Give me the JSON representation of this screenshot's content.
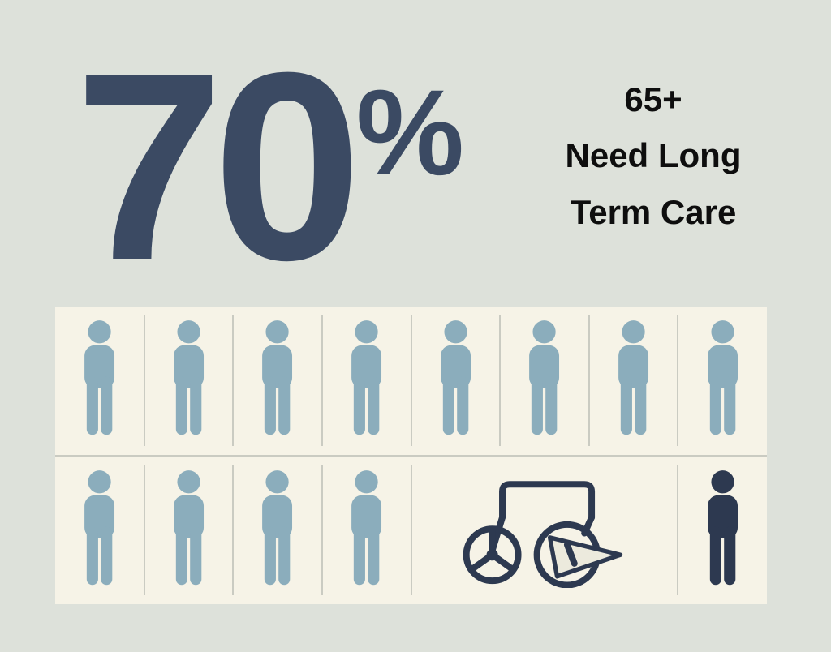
{
  "background": "#dde1da",
  "stat": {
    "value": "70",
    "suffix": "%"
  },
  "headline": {
    "lines": [
      "65+",
      "Need Long",
      "Term Care"
    ]
  },
  "colors": {
    "background": "#dde1da",
    "stat": "#3b4a63",
    "headline": "#0e0e0e",
    "panel": "#f6f3e7",
    "person": "#8badbc",
    "person_dark": "#2d3950",
    "divider": "#cacbc2",
    "pennant": "#eceadd"
  },
  "chart_data": {
    "type": "pictograph",
    "title": "70%",
    "subtitle": "65+ Need Long Term Care",
    "value_pct": 70,
    "icon_rows": [
      [
        "person",
        "person",
        "person",
        "person",
        "person",
        "person",
        "person",
        "person"
      ],
      [
        "person",
        "person",
        "person",
        "person",
        "wheelchair",
        "person-dark"
      ]
    ],
    "icon_counts": {
      "person": 12,
      "person-dark": 1,
      "wheelchair": 1
    }
  }
}
